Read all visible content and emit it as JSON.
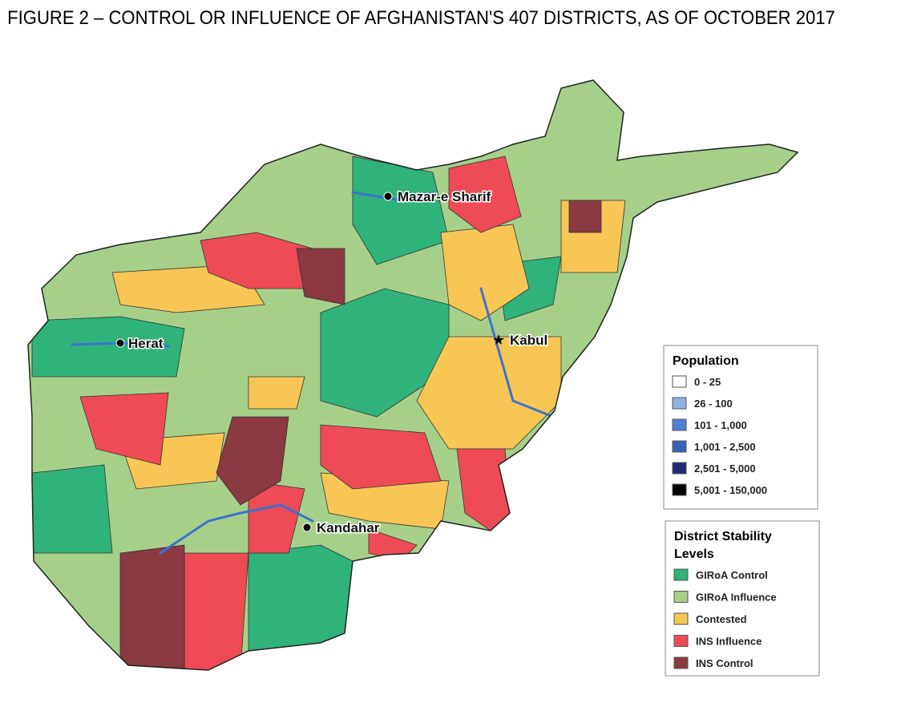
{
  "header": {
    "title": "FIGURE 2 – CONTROL OR INFLUENCE OF AFGHANISTAN'S 407 DISTRICTS, AS OF OCTOBER 2017"
  },
  "map": {
    "cities": [
      "Mazar-e Sharif",
      "Herat",
      "Kabul",
      "Kandahar"
    ]
  },
  "legends": [
    {
      "title_lines": [
        "Population"
      ],
      "items": [
        {
          "label": "0 - 25",
          "color": "#ffffff"
        },
        {
          "label": "26 - 100",
          "color": "#8db3e2"
        },
        {
          "label": "101 - 1,000",
          "color": "#4f81d4"
        },
        {
          "label": "1,001 - 2,500",
          "color": "#3a63b8"
        },
        {
          "label": "2,501 - 5,000",
          "color": "#1f2a70"
        },
        {
          "label": "5,001 - 150,000",
          "color": "#000000"
        }
      ]
    },
    {
      "title_lines": [
        "District Stability",
        "Levels"
      ],
      "items": [
        {
          "label": "GIRoA Control",
          "color": "#2fb37a"
        },
        {
          "label": "GIRoA Influence",
          "color": "#a6d08a"
        },
        {
          "label": "Contested",
          "color": "#f8c654"
        },
        {
          "label": "INS Influence",
          "color": "#ee4b57"
        },
        {
          "label": "INS Control",
          "color": "#8a3a40"
        }
      ]
    }
  ]
}
